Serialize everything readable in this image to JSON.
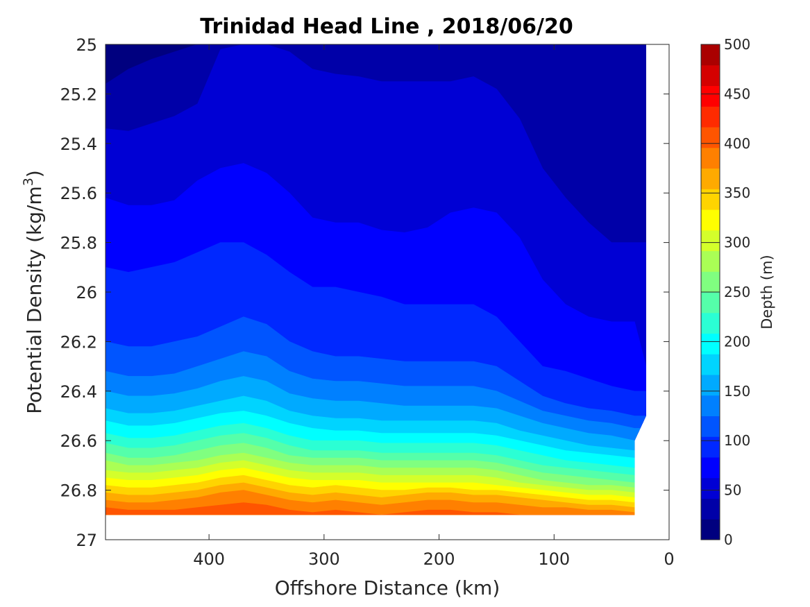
{
  "chart_data": {
    "type": "contour",
    "title": "Trinidad Head Line , 2018/06/20",
    "xlabel": "Offshore Distance (km)",
    "ylabel": "Potential Density (kg/m",
    "ylabel_sup": "3",
    "ylabel_end": ")",
    "xlim": [
      490,
      0
    ],
    "ylim": [
      25,
      27
    ],
    "x_ticks": [
      400,
      300,
      200,
      100,
      0
    ],
    "x_tick_labels": [
      "400",
      "300",
      "200",
      "100",
      "0"
    ],
    "y_ticks": [
      25,
      25.2,
      25.4,
      25.6,
      25.8,
      26,
      26.2,
      26.4,
      26.6,
      26.8,
      27
    ],
    "y_tick_labels": [
      "25",
      "25.2",
      "25.4",
      "25.6",
      "25.8",
      "26",
      "26.2",
      "26.4",
      "26.6",
      "26.8",
      "27"
    ],
    "colorbar": {
      "label": "Depth (m)",
      "range": [
        0,
        500
      ],
      "ticks": [
        0,
        50,
        100,
        150,
        200,
        250,
        300,
        350,
        400,
        450,
        500
      ],
      "tick_labels": [
        "0",
        "50",
        "100",
        "150",
        "200",
        "250",
        "300",
        "350",
        "400",
        "450",
        "500"
      ],
      "level_step": 25,
      "colors": [
        "#00007f",
        "#0000a8",
        "#0000d4",
        "#0000ff",
        "#0028ff",
        "#0055ff",
        "#0080ff",
        "#00aaff",
        "#00d4ff",
        "#00ffff",
        "#2bffd4",
        "#55ffaa",
        "#80ff80",
        "#aaff55",
        "#d4ff2b",
        "#ffff00",
        "#ffd400",
        "#ffaa00",
        "#ff8000",
        "#ff5500",
        "#ff2b00",
        "#ff0000",
        "#d40000",
        "#aa0000"
      ]
    },
    "data_extent": {
      "x_max": 490,
      "bottom_density": 26.9,
      "right_edge": [
        [
          20,
          25
        ],
        [
          20,
          26.5
        ],
        [
          30,
          26.6
        ],
        [
          30,
          26.9
        ]
      ]
    },
    "x_nodes": [
      490,
      470,
      450,
      430,
      410,
      390,
      370,
      350,
      330,
      310,
      290,
      270,
      250,
      230,
      210,
      190,
      170,
      150,
      130,
      110,
      90,
      70,
      50,
      30,
      20
    ],
    "depth_contours": [
      {
        "level": 25,
        "density": [
          25.16,
          25.1,
          25.06,
          25.03,
          25.0,
          25.0,
          25.0,
          25.0,
          25.0,
          25.0,
          25.0,
          25.0,
          25.0,
          25.0,
          25.0,
          25.0,
          25.0,
          25.0,
          25.0,
          25.0,
          25.0,
          25.0,
          25.0,
          25.0,
          25.0
        ]
      },
      {
        "level": 50,
        "density": [
          25.34,
          25.35,
          25.32,
          25.29,
          25.24,
          25.02,
          25.0,
          25.0,
          25.03,
          25.1,
          25.12,
          25.13,
          25.15,
          25.15,
          25.15,
          25.15,
          25.13,
          25.18,
          25.3,
          25.5,
          25.62,
          25.72,
          25.8,
          25.8,
          25.8
        ]
      },
      {
        "level": 75,
        "density": [
          25.62,
          25.65,
          25.65,
          25.63,
          25.55,
          25.5,
          25.48,
          25.52,
          25.6,
          25.7,
          25.72,
          25.72,
          25.75,
          25.76,
          25.74,
          25.68,
          25.66,
          25.68,
          25.78,
          25.95,
          26.05,
          26.1,
          26.12,
          26.12,
          26.3
        ]
      },
      {
        "level": 100,
        "density": [
          25.9,
          25.92,
          25.9,
          25.88,
          25.84,
          25.8,
          25.8,
          25.85,
          25.92,
          25.98,
          25.98,
          26.0,
          26.02,
          26.05,
          26.05,
          26.05,
          26.05,
          26.1,
          26.2,
          26.3,
          26.32,
          26.35,
          26.38,
          26.4,
          26.4
        ]
      },
      {
        "level": 125,
        "density": [
          26.2,
          26.22,
          26.22,
          26.2,
          26.18,
          26.14,
          26.1,
          26.13,
          26.2,
          26.24,
          26.26,
          26.26,
          26.27,
          26.28,
          26.28,
          26.28,
          26.28,
          26.3,
          26.36,
          26.42,
          26.45,
          26.47,
          26.48,
          26.5,
          26.5
        ]
      },
      {
        "level": 150,
        "density": [
          26.32,
          26.34,
          26.34,
          26.33,
          26.3,
          26.27,
          26.24,
          26.26,
          26.32,
          26.35,
          26.36,
          26.36,
          26.37,
          26.38,
          26.38,
          26.38,
          26.38,
          26.4,
          26.44,
          26.48,
          26.5,
          26.52,
          26.53,
          26.55,
          26.55
        ]
      },
      {
        "level": 175,
        "density": [
          26.4,
          26.42,
          26.42,
          26.41,
          26.39,
          26.36,
          26.34,
          26.36,
          26.41,
          26.43,
          26.44,
          26.44,
          26.45,
          26.46,
          26.46,
          26.46,
          26.46,
          26.47,
          26.5,
          26.53,
          26.55,
          26.57,
          26.58,
          26.6,
          26.6
        ]
      },
      {
        "level": 200,
        "density": [
          26.47,
          26.49,
          26.49,
          26.48,
          26.46,
          26.44,
          26.42,
          26.44,
          26.48,
          26.5,
          26.51,
          26.51,
          26.52,
          26.52,
          26.52,
          26.52,
          26.52,
          26.53,
          26.56,
          26.58,
          26.6,
          26.62,
          26.63,
          26.64,
          26.64
        ]
      },
      {
        "level": 225,
        "density": [
          26.52,
          26.54,
          26.54,
          26.53,
          26.51,
          26.49,
          26.48,
          26.5,
          26.53,
          26.55,
          26.56,
          26.56,
          26.57,
          26.57,
          26.57,
          26.57,
          26.57,
          26.58,
          26.6,
          26.62,
          26.64,
          26.65,
          26.66,
          26.67,
          26.67
        ]
      },
      {
        "level": 250,
        "density": [
          26.57,
          26.59,
          26.59,
          26.58,
          26.56,
          26.54,
          26.53,
          26.55,
          26.58,
          26.6,
          26.6,
          26.6,
          26.61,
          26.61,
          26.61,
          26.61,
          26.61,
          26.62,
          26.64,
          26.66,
          26.68,
          26.69,
          26.7,
          26.71,
          26.71
        ]
      },
      {
        "level": 275,
        "density": [
          26.61,
          26.63,
          26.63,
          26.62,
          26.6,
          26.58,
          26.57,
          26.59,
          26.62,
          26.64,
          26.64,
          26.64,
          26.65,
          26.65,
          26.65,
          26.65,
          26.65,
          26.66,
          26.68,
          26.7,
          26.71,
          26.72,
          26.73,
          26.74,
          26.74
        ]
      },
      {
        "level": 300,
        "density": [
          26.65,
          26.67,
          26.67,
          26.66,
          26.64,
          26.62,
          26.61,
          26.63,
          26.66,
          26.67,
          26.67,
          26.67,
          26.68,
          26.68,
          26.68,
          26.68,
          26.68,
          26.69,
          26.71,
          26.73,
          26.74,
          26.75,
          26.76,
          26.77,
          26.77
        ]
      },
      {
        "level": 325,
        "density": [
          26.68,
          26.7,
          26.7,
          26.69,
          26.68,
          26.66,
          26.65,
          26.67,
          26.69,
          26.7,
          26.7,
          26.7,
          26.71,
          26.71,
          26.71,
          26.71,
          26.71,
          26.72,
          26.74,
          26.76,
          26.77,
          26.78,
          26.78,
          26.79,
          26.79
        ]
      },
      {
        "level": 350,
        "density": [
          26.72,
          26.73,
          26.73,
          26.72,
          26.71,
          26.69,
          26.68,
          26.7,
          26.72,
          26.73,
          26.73,
          26.73,
          26.74,
          26.74,
          26.74,
          26.74,
          26.74,
          26.75,
          26.77,
          26.78,
          26.79,
          26.8,
          26.8,
          26.81,
          26.81
        ]
      },
      {
        "level": 375,
        "density": [
          26.75,
          26.76,
          26.76,
          26.75,
          26.74,
          26.72,
          26.71,
          26.73,
          26.75,
          26.76,
          26.76,
          26.76,
          26.77,
          26.77,
          26.77,
          26.77,
          26.77,
          26.78,
          26.79,
          26.8,
          26.81,
          26.82,
          26.82,
          26.83,
          26.83
        ]
      },
      {
        "level": 400,
        "density": [
          26.78,
          26.79,
          26.79,
          26.78,
          26.77,
          26.75,
          26.74,
          26.76,
          26.78,
          26.79,
          26.78,
          26.79,
          26.8,
          26.8,
          26.79,
          26.79,
          26.8,
          26.8,
          26.81,
          26.82,
          26.83,
          26.84,
          26.84,
          26.85,
          26.85
        ]
      },
      {
        "level": 425,
        "density": [
          26.81,
          26.82,
          26.82,
          26.81,
          26.8,
          26.78,
          26.77,
          26.79,
          26.81,
          26.82,
          26.81,
          26.82,
          26.83,
          26.82,
          26.81,
          26.81,
          26.82,
          26.82,
          26.83,
          26.84,
          26.85,
          26.86,
          26.86,
          26.87,
          26.87
        ]
      },
      {
        "level": 450,
        "density": [
          26.84,
          26.85,
          26.85,
          26.84,
          26.83,
          26.81,
          26.8,
          26.82,
          26.84,
          26.85,
          26.84,
          26.85,
          26.86,
          26.85,
          26.84,
          26.84,
          26.85,
          26.85,
          26.86,
          26.87,
          26.87,
          26.88,
          26.88,
          26.89,
          26.89
        ]
      },
      {
        "level": 475,
        "density": [
          26.87,
          26.88,
          26.88,
          26.88,
          26.87,
          26.86,
          26.85,
          26.86,
          26.88,
          26.89,
          26.88,
          26.89,
          26.9,
          26.89,
          26.88,
          26.88,
          26.89,
          26.89,
          26.9,
          26.9,
          26.9,
          26.9,
          26.9,
          26.9,
          26.9
        ]
      }
    ]
  }
}
